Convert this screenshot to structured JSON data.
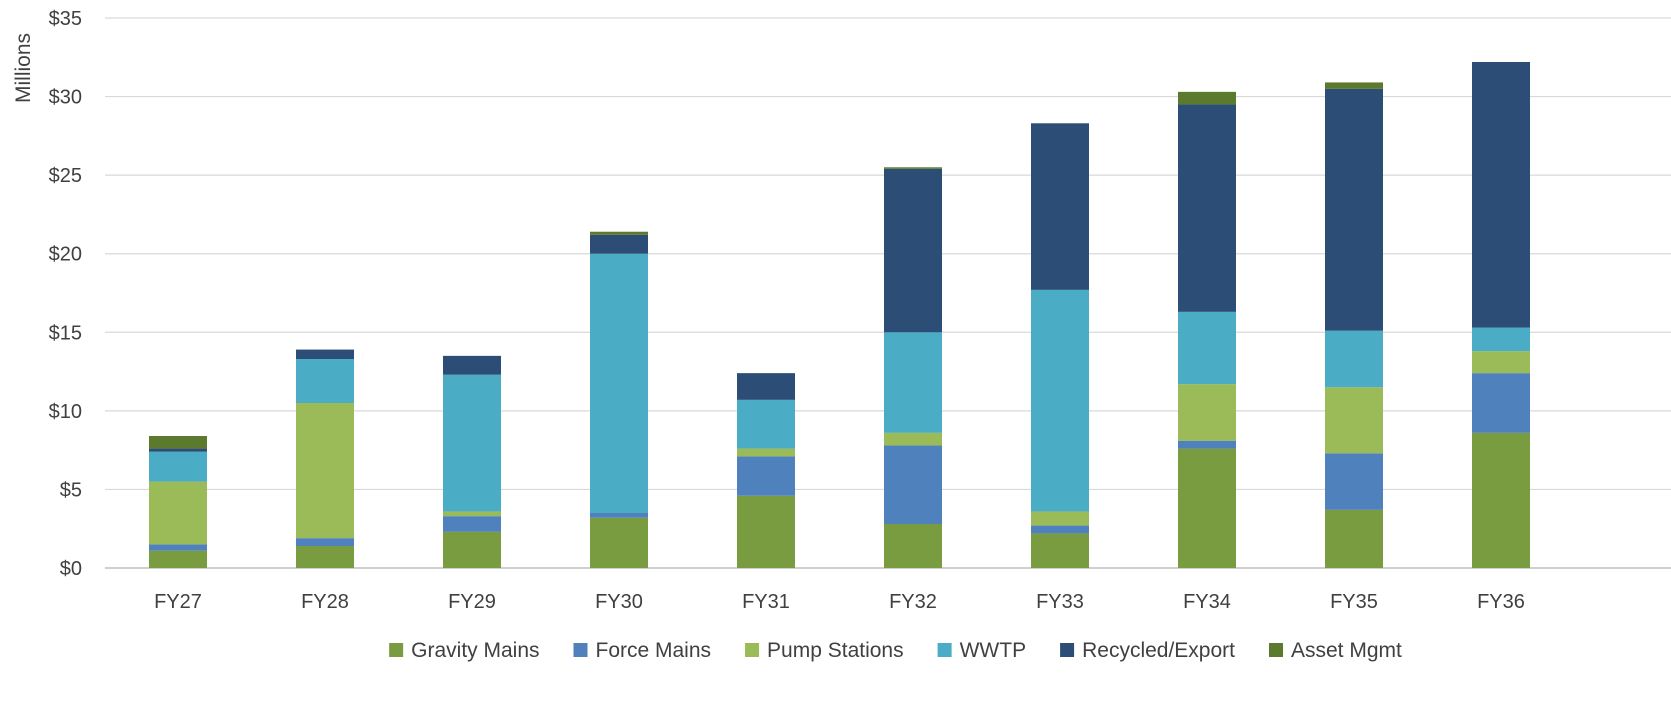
{
  "chart_data": {
    "type": "bar",
    "stacked": true,
    "title": "",
    "xlabel": "",
    "ylabel": "Millions",
    "ylim": [
      0,
      35
    ],
    "ytick_step": 5,
    "ytick_prefix": "$",
    "grid": true,
    "legend_position": "bottom",
    "categories": [
      "FY27",
      "FY28",
      "FY29",
      "FY30",
      "FY31",
      "FY32",
      "FY33",
      "FY34",
      "FY35",
      "FY36"
    ],
    "series": [
      {
        "name": "Gravity Mains",
        "color": "#7A9C40",
        "values": [
          1.1,
          1.4,
          2.3,
          3.2,
          4.6,
          2.8,
          2.2,
          7.6,
          3.7,
          8.6
        ]
      },
      {
        "name": "Force Mains",
        "color": "#4F81BD",
        "values": [
          0.4,
          0.5,
          1.0,
          0.3,
          2.5,
          5.0,
          0.5,
          0.5,
          3.6,
          3.8
        ]
      },
      {
        "name": "Pump Stations",
        "color": "#9BBB59",
        "values": [
          4.0,
          8.6,
          0.3,
          0.0,
          0.5,
          0.8,
          0.9,
          3.6,
          4.2,
          1.4
        ]
      },
      {
        "name": "WWTP",
        "color": "#4BACC6",
        "values": [
          1.9,
          2.8,
          8.7,
          16.5,
          3.1,
          6.4,
          14.1,
          4.6,
          3.6,
          1.5
        ]
      },
      {
        "name": "Recycled/Export",
        "color": "#2C4D75",
        "values": [
          0.2,
          0.6,
          1.2,
          1.2,
          1.7,
          10.4,
          10.6,
          13.2,
          15.4,
          16.9
        ]
      },
      {
        "name": "Asset Mgmt",
        "color": "#5C7A2E",
        "values": [
          0.8,
          0.0,
          0.0,
          0.2,
          0.0,
          0.1,
          0.0,
          0.8,
          0.4,
          0.0
        ]
      }
    ]
  }
}
